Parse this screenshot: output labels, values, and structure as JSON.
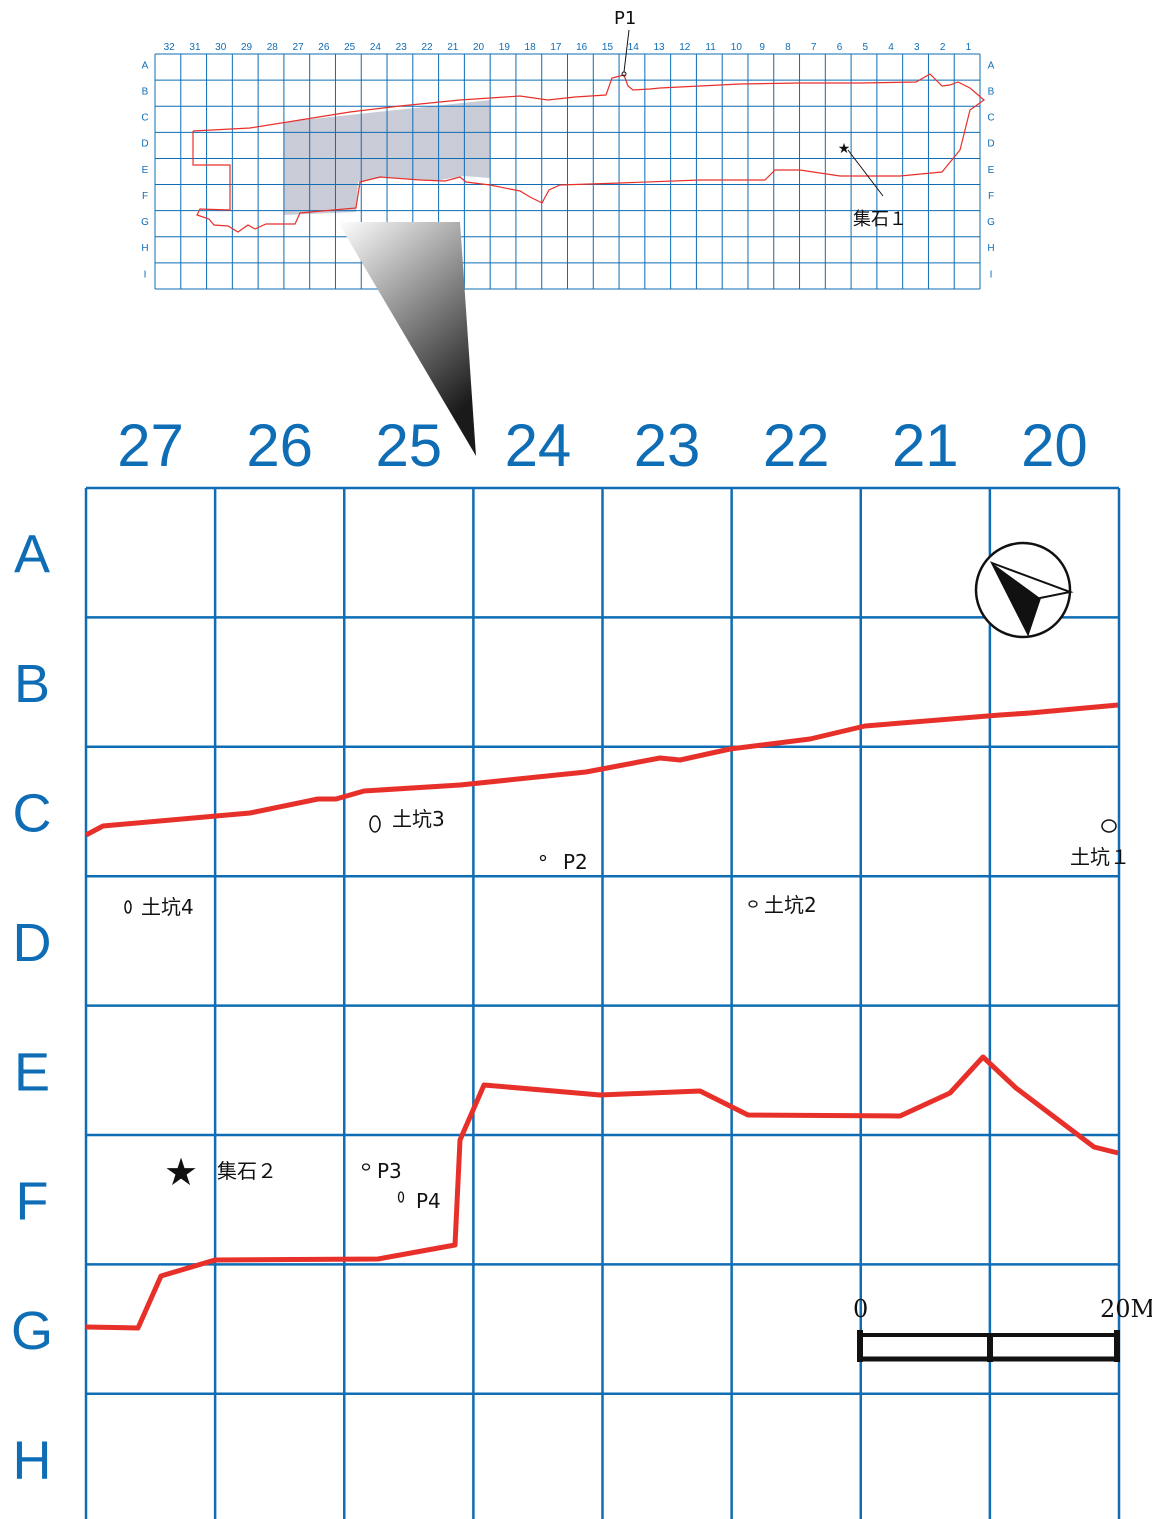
{
  "overview": {
    "column_labels": [
      "32",
      "31",
      "30",
      "29",
      "28",
      "27",
      "26",
      "25",
      "24",
      "23",
      "22",
      "21",
      "20",
      "19",
      "18",
      "17",
      "16",
      "15",
      "14",
      "13",
      "12",
      "11",
      "10",
      "9",
      "8",
      "7",
      "6",
      "5",
      "4",
      "3",
      "2",
      "1"
    ],
    "row_labels": [
      "A",
      "B",
      "C",
      "D",
      "E",
      "F",
      "G",
      "H",
      "I"
    ],
    "features": {
      "p1_label": "P1",
      "stone_cluster_1_label": "集石１"
    }
  },
  "detail": {
    "column_labels": [
      "27",
      "26",
      "25",
      "24",
      "23",
      "22",
      "21",
      "20"
    ],
    "row_labels": [
      "A",
      "B",
      "C",
      "D",
      "E",
      "F",
      "G",
      "H"
    ],
    "features": {
      "pit_1": "土坑１",
      "pit_2": "土坑2",
      "pit_3": "土坑3",
      "pit_4": "土坑4",
      "post_p2": "P2",
      "post_p3": "P3",
      "post_p4": "P4",
      "stone_cluster_2": "集石２"
    },
    "scale_bar": {
      "min_label": "0",
      "max_label": "20M"
    },
    "north_arrow_icon": "north-arrow-icon"
  },
  "colors": {
    "grid": "#0e6db5",
    "boundary": "#e8302a",
    "shading": "#c9cbd6",
    "text": "#111111"
  }
}
